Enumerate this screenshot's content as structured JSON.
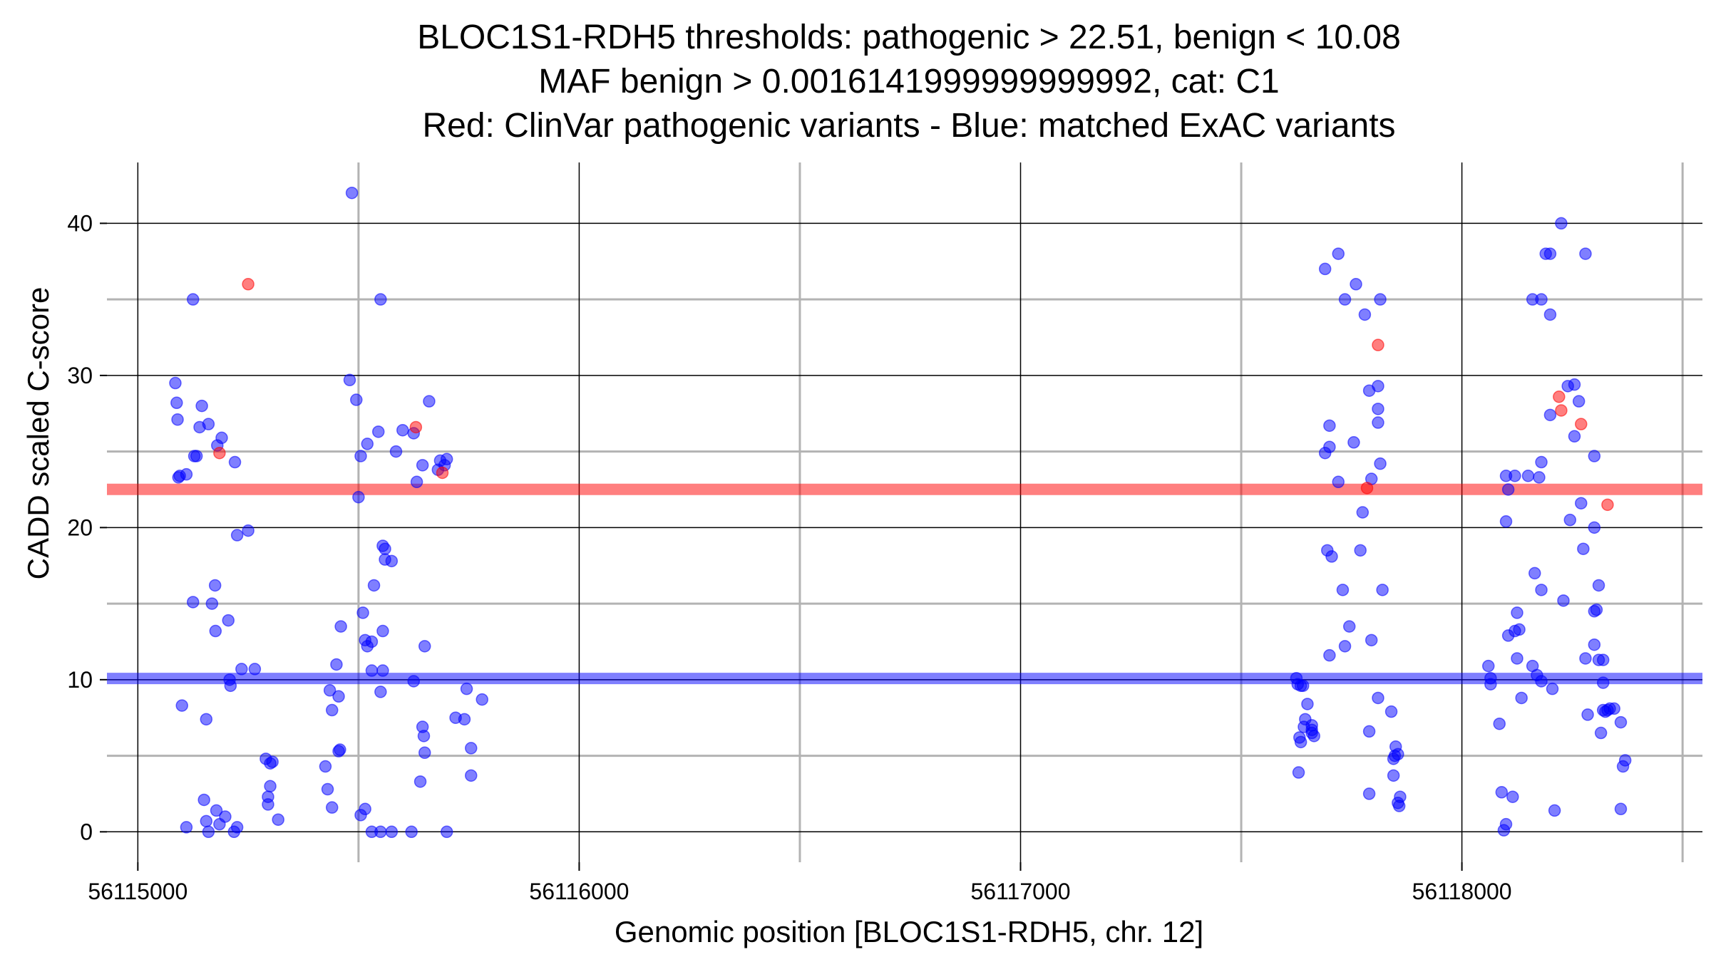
{
  "chart_data": {
    "type": "scatter",
    "title_lines": [
      "BLOC1S1-RDH5 thresholds: pathogenic > 22.51, benign < 10.08",
      "MAF benign > 0.0016141999999999992, cat: C1",
      "Red: ClinVar pathogenic variants - Blue: matched ExAC variants"
    ],
    "xlabel": "Genomic position [BLOC1S1-RDH5, chr. 12]",
    "ylabel": "CADD scaled C-score",
    "xlim": [
      56114930,
      56118545
    ],
    "ylim": [
      -2,
      44
    ],
    "x_ticks": [
      56115000,
      56116000,
      56117000,
      56118000
    ],
    "x_minor_ticks": [
      56115500,
      56116500,
      56117500,
      56118500
    ],
    "y_ticks": [
      0,
      10,
      20,
      30,
      40
    ],
    "y_minor_ticks": [
      5,
      15,
      25,
      35
    ],
    "thresholds": {
      "pathogenic": 22.51,
      "benign": 10.08
    },
    "colors": {
      "pathogenic": "#ff0000",
      "benign": "#0000ff",
      "grid_major": "#000000",
      "grid_minor": "#b3b3b3"
    },
    "series": [
      {
        "name": "ClinVar pathogenic variants",
        "color": "#ff0000",
        "points": [
          [
            56115250,
            36
          ],
          [
            56115185,
            24.9
          ],
          [
            56115630,
            26.6
          ],
          [
            56115690,
            23.6
          ],
          [
            56117810,
            32
          ],
          [
            56117785,
            22.6
          ],
          [
            56118220,
            28.6
          ],
          [
            56118225,
            27.7
          ],
          [
            56118270,
            26.8
          ],
          [
            56118330,
            21.5
          ]
        ]
      },
      {
        "name": "matched ExAC variants",
        "color": "#0000ff",
        "points": [
          [
            56115085,
            29.5
          ],
          [
            56115088,
            28.2
          ],
          [
            56115090,
            27.1
          ],
          [
            56115092,
            23.3
          ],
          [
            56115095,
            23.4
          ],
          [
            56115110,
            23.5
          ],
          [
            56115125,
            15.1
          ],
          [
            56115125,
            35
          ],
          [
            56115128,
            24.7
          ],
          [
            56115133,
            24.7
          ],
          [
            56115140,
            26.6
          ],
          [
            56115145,
            28
          ],
          [
            56115160,
            26.8
          ],
          [
            56115168,
            15
          ],
          [
            56115176,
            13.2
          ],
          [
            56115180,
            25.4
          ],
          [
            56115190,
            25.9
          ],
          [
            56115205,
            13.9
          ],
          [
            56115208,
            10
          ],
          [
            56115210,
            9.6
          ],
          [
            56115225,
            19.5
          ],
          [
            56115235,
            10.7
          ],
          [
            56115250,
            19.8
          ],
          [
            56115265,
            10.7
          ],
          [
            56115100,
            8.3
          ],
          [
            56115155,
            7.4
          ],
          [
            56115175,
            16.2
          ],
          [
            56115110,
            0.3
          ],
          [
            56115150,
            2.1
          ],
          [
            56115155,
            0.7
          ],
          [
            56115160,
            0
          ],
          [
            56115178,
            1.4
          ],
          [
            56115185,
            0.5
          ],
          [
            56115198,
            1
          ],
          [
            56115218,
            0
          ],
          [
            56115225,
            0.3
          ],
          [
            56115220,
            24.3
          ],
          [
            56115290,
            4.8
          ],
          [
            56115300,
            4.5
          ],
          [
            56115305,
            4.6
          ],
          [
            56115300,
            3
          ],
          [
            56115295,
            2.3
          ],
          [
            56115295,
            1.8
          ],
          [
            56115318,
            0.8
          ],
          [
            56115485,
            42
          ],
          [
            56115480,
            29.7
          ],
          [
            56115495,
            28.4
          ],
          [
            56115500,
            22
          ],
          [
            56115505,
            24.7
          ],
          [
            56115520,
            25.5
          ],
          [
            56115545,
            26.3
          ],
          [
            56115550,
            35
          ],
          [
            56115585,
            25
          ],
          [
            56115600,
            26.4
          ],
          [
            56115625,
            26.2
          ],
          [
            56115632,
            23
          ],
          [
            56115645,
            24.1
          ],
          [
            56115660,
            28.3
          ],
          [
            56115680,
            23.8
          ],
          [
            56115685,
            24.4
          ],
          [
            56115695,
            24.1
          ],
          [
            56115700,
            24.5
          ],
          [
            56115555,
            18.8
          ],
          [
            56115560,
            18.6
          ],
          [
            56115560,
            17.9
          ],
          [
            56115575,
            17.8
          ],
          [
            56115535,
            16.2
          ],
          [
            56115510,
            14.4
          ],
          [
            56115460,
            13.5
          ],
          [
            56115515,
            12.6
          ],
          [
            56115520,
            12.2
          ],
          [
            56115530,
            12.5
          ],
          [
            56115555,
            13.2
          ],
          [
            56115450,
            11
          ],
          [
            56115530,
            10.6
          ],
          [
            56115555,
            10.6
          ],
          [
            56115550,
            9.2
          ],
          [
            56115625,
            9.9
          ],
          [
            56115650,
            12.2
          ],
          [
            56115435,
            9.3
          ],
          [
            56115455,
            8.9
          ],
          [
            56115440,
            8
          ],
          [
            56115645,
            6.9
          ],
          [
            56115648,
            6.3
          ],
          [
            56115650,
            5.2
          ],
          [
            56115720,
            7.5
          ],
          [
            56115745,
            9.4
          ],
          [
            56115740,
            7.4
          ],
          [
            56115780,
            8.7
          ],
          [
            56115755,
            5.5
          ],
          [
            56115755,
            3.7
          ],
          [
            56115458,
            5.4
          ],
          [
            56115455,
            5.3
          ],
          [
            56115425,
            4.3
          ],
          [
            56115430,
            2.8
          ],
          [
            56115440,
            1.6
          ],
          [
            56115640,
            3.3
          ],
          [
            56115505,
            1.1
          ],
          [
            56115515,
            1.5
          ],
          [
            56115530,
            0
          ],
          [
            56115550,
            0
          ],
          [
            56115575,
            0
          ],
          [
            56115620,
            0
          ],
          [
            56115700,
            0
          ],
          [
            56117690,
            37
          ],
          [
            56117720,
            38
          ],
          [
            56117735,
            35
          ],
          [
            56117760,
            36
          ],
          [
            56117780,
            34
          ],
          [
            56117815,
            35
          ],
          [
            56117700,
            26.7
          ],
          [
            56117700,
            25.3
          ],
          [
            56117690,
            24.9
          ],
          [
            56117720,
            23
          ],
          [
            56117755,
            25.6
          ],
          [
            56117790,
            29
          ],
          [
            56117810,
            29.3
          ],
          [
            56117810,
            27.8
          ],
          [
            56117810,
            26.9
          ],
          [
            56117815,
            24.2
          ],
          [
            56117795,
            23.2
          ],
          [
            56117775,
            21
          ],
          [
            56117695,
            18.5
          ],
          [
            56117705,
            18.1
          ],
          [
            56117770,
            18.5
          ],
          [
            56117730,
            15.9
          ],
          [
            56117820,
            15.9
          ],
          [
            56117745,
            13.5
          ],
          [
            56117735,
            12.2
          ],
          [
            56117795,
            12.6
          ],
          [
            56117700,
            11.6
          ],
          [
            56117625,
            10.1
          ],
          [
            56117628,
            9.7
          ],
          [
            56117635,
            9.6
          ],
          [
            56117640,
            9.6
          ],
          [
            56117650,
            8.4
          ],
          [
            56117645,
            7.4
          ],
          [
            56117642,
            6.9
          ],
          [
            56117660,
            7
          ],
          [
            56117660,
            6.7
          ],
          [
            56117665,
            6.3
          ],
          [
            56117660,
            6.5
          ],
          [
            56117632,
            6.2
          ],
          [
            56117635,
            5.9
          ],
          [
            56117630,
            3.9
          ],
          [
            56117810,
            8.8
          ],
          [
            56117840,
            7.9
          ],
          [
            56117790,
            6.6
          ],
          [
            56117850,
            5.6
          ],
          [
            56117855,
            5.1
          ],
          [
            56117845,
            4.8
          ],
          [
            56117848,
            5
          ],
          [
            56117845,
            3.7
          ],
          [
            56117790,
            2.5
          ],
          [
            56117860,
            2.3
          ],
          [
            56117855,
            1.9
          ],
          [
            56117858,
            1.7
          ],
          [
            56118225,
            40
          ],
          [
            56118190,
            38
          ],
          [
            56118200,
            38
          ],
          [
            56118280,
            38
          ],
          [
            56118160,
            35
          ],
          [
            56118180,
            35
          ],
          [
            56118200,
            34
          ],
          [
            56118240,
            29.3
          ],
          [
            56118255,
            29.4
          ],
          [
            56118265,
            28.3
          ],
          [
            56118200,
            27.4
          ],
          [
            56118255,
            26
          ],
          [
            56118300,
            24.7
          ],
          [
            56118180,
            24.3
          ],
          [
            56118100,
            23.4
          ],
          [
            56118120,
            23.4
          ],
          [
            56118150,
            23.4
          ],
          [
            56118175,
            23.3
          ],
          [
            56118105,
            22.5
          ],
          [
            56118270,
            21.6
          ],
          [
            56118100,
            20.4
          ],
          [
            56118245,
            20.5
          ],
          [
            56118300,
            20
          ],
          [
            56118275,
            18.6
          ],
          [
            56118165,
            17
          ],
          [
            56118180,
            15.9
          ],
          [
            56118230,
            15.2
          ],
          [
            56118310,
            16.2
          ],
          [
            56118125,
            14.4
          ],
          [
            56118300,
            14.5
          ],
          [
            56118305,
            14.6
          ],
          [
            56118130,
            13.3
          ],
          [
            56118120,
            13.2
          ],
          [
            56118105,
            12.9
          ],
          [
            56118300,
            12.3
          ],
          [
            56118310,
            11.3
          ],
          [
            56118320,
            11.3
          ],
          [
            56118280,
            11.4
          ],
          [
            56118125,
            11.4
          ],
          [
            56118160,
            10.9
          ],
          [
            56118060,
            10.9
          ],
          [
            56118065,
            10.1
          ],
          [
            56118065,
            9.7
          ],
          [
            56118170,
            10.3
          ],
          [
            56118180,
            9.9
          ],
          [
            56118320,
            9.8
          ],
          [
            56118205,
            9.4
          ],
          [
            56118135,
            8.8
          ],
          [
            56118320,
            8
          ],
          [
            56118330,
            8
          ],
          [
            56118335,
            8.1
          ],
          [
            56118345,
            8.1
          ],
          [
            56118325,
            7.9
          ],
          [
            56118360,
            7.2
          ],
          [
            56118285,
            7.7
          ],
          [
            56118085,
            7.1
          ],
          [
            56118315,
            6.5
          ],
          [
            56118370,
            4.7
          ],
          [
            56118365,
            4.3
          ],
          [
            56118090,
            2.6
          ],
          [
            56118115,
            2.3
          ],
          [
            56118210,
            1.4
          ],
          [
            56118360,
            1.5
          ],
          [
            56118100,
            0.5
          ],
          [
            56118095,
            0.1
          ]
        ]
      }
    ]
  }
}
